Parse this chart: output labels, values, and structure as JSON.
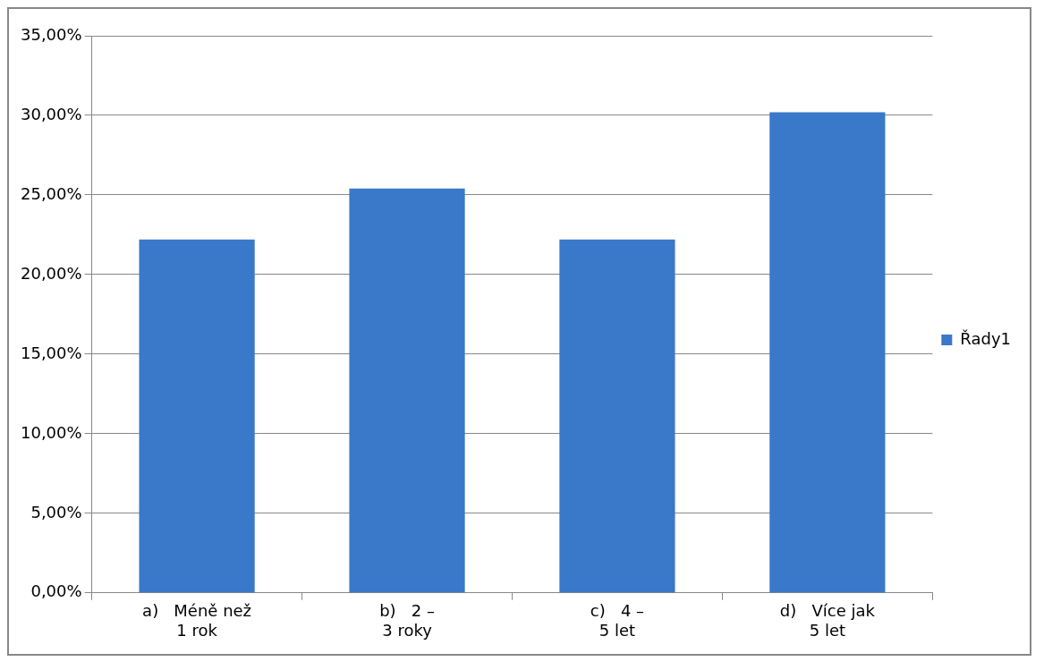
{
  "chart_data": {
    "type": "bar",
    "categories": [
      "a)      Méně než 1 rok",
      "b)      2 – 3 roky",
      "c)      4 – 5 let",
      "d)      Více jak 5 let"
    ],
    "series": [
      {
        "name": "Řady1",
        "color": "#3a78c9",
        "values": [
          22.2,
          25.4,
          22.2,
          30.2
        ]
      }
    ],
    "ylim": [
      0,
      35
    ],
    "yticks": [
      {
        "value": 0,
        "label": "0,00%"
      },
      {
        "value": 5,
        "label": "5,00%"
      },
      {
        "value": 10,
        "label": "10,00%"
      },
      {
        "value": 15,
        "label": "15,00%"
      },
      {
        "value": 20,
        "label": "20,00%"
      },
      {
        "value": 25,
        "label": "25,00%"
      },
      {
        "value": 30,
        "label": "30,00%"
      },
      {
        "value": 35,
        "label": "35,00%"
      }
    ],
    "grid": "y",
    "legend": "right"
  }
}
